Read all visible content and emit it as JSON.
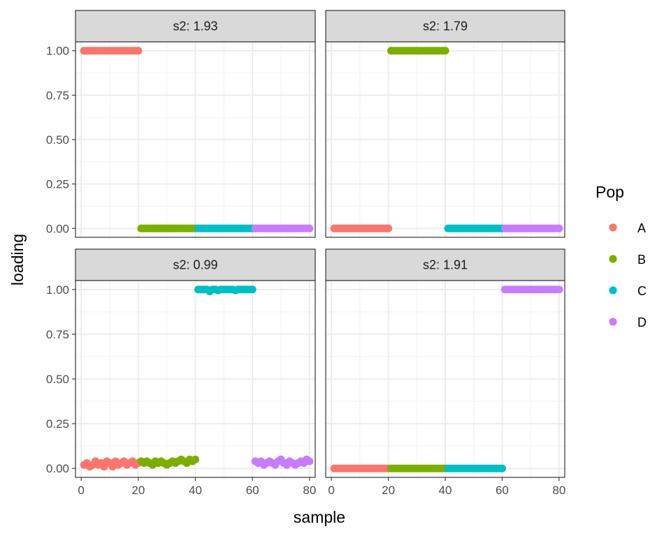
{
  "chart_data": {
    "type": "scatter",
    "xlabel": "sample",
    "ylabel": "loading",
    "xlim": [
      -2,
      82
    ],
    "ylim": [
      -0.05,
      1.05
    ],
    "x_ticks": [
      0,
      20,
      40,
      60,
      80
    ],
    "y_ticks": [
      0.0,
      0.25,
      0.5,
      0.75,
      1.0
    ],
    "x_tick_labels": [
      "0",
      "20",
      "40",
      "60",
      "80"
    ],
    "y_tick_labels": [
      "0.00",
      "0.25",
      "0.50",
      "0.75",
      "1.00"
    ],
    "grid": true,
    "legend": {
      "title": "Pop",
      "placement": "right",
      "entries": [
        {
          "label": "A",
          "color": "#F8766D"
        },
        {
          "label": "B",
          "color": "#7CAE00"
        },
        {
          "label": "C",
          "color": "#00BFC4"
        },
        {
          "label": "D",
          "color": "#C77CFF"
        }
      ]
    },
    "panels": [
      {
        "label": "s2: 1.93",
        "groups": [
          {
            "pop": "A",
            "x_range": [
              1,
              20
            ],
            "y": 1.0
          },
          {
            "pop": "B",
            "x_range": [
              21,
              40
            ],
            "y": 0.0
          },
          {
            "pop": "C",
            "x_range": [
              41,
              60
            ],
            "y": 0.0
          },
          {
            "pop": "D",
            "x_range": [
              61,
              80
            ],
            "y": 0.0
          }
        ]
      },
      {
        "label": "s2: 1.79",
        "groups": [
          {
            "pop": "A",
            "x_range": [
              1,
              20
            ],
            "y": 0.0
          },
          {
            "pop": "B",
            "x_range": [
              21,
              40
            ],
            "y": 1.0
          },
          {
            "pop": "C",
            "x_range": [
              41,
              60
            ],
            "y": 0.0
          },
          {
            "pop": "D",
            "x_range": [
              61,
              80
            ],
            "y": 0.0
          }
        ]
      },
      {
        "label": "s2: 0.99",
        "groups": [
          {
            "pop": "A",
            "x_range": [
              1,
              20
            ],
            "y_values": [
              0.02,
              0.03,
              0.01,
              0.02,
              0.04,
              0.02,
              0.03,
              0.01,
              0.04,
              0.03,
              0.01,
              0.04,
              0.02,
              0.03,
              0.04,
              0.02,
              0.03,
              0.04,
              0.02,
              0.03
            ]
          },
          {
            "pop": "B",
            "x_range": [
              21,
              40
            ],
            "y_values": [
              0.04,
              0.03,
              0.04,
              0.03,
              0.02,
              0.04,
              0.03,
              0.04,
              0.03,
              0.02,
              0.03,
              0.04,
              0.03,
              0.04,
              0.05,
              0.04,
              0.03,
              0.05,
              0.04,
              0.05
            ]
          },
          {
            "pop": "C",
            "x_range": [
              41,
              60
            ],
            "y_values": [
              1.0,
              1.0,
              1.0,
              1.0,
              0.99,
              1.0,
              1.0,
              0.995,
              1.0,
              1.0,
              1.0,
              1.0,
              1.0,
              0.995,
              1.0,
              1.0,
              1.0,
              1.0,
              1.0,
              1.0
            ]
          },
          {
            "pop": "D",
            "x_range": [
              61,
              80
            ],
            "y_values": [
              0.04,
              0.03,
              0.04,
              0.02,
              0.03,
              0.04,
              0.03,
              0.02,
              0.04,
              0.05,
              0.03,
              0.02,
              0.04,
              0.03,
              0.02,
              0.03,
              0.04,
              0.03,
              0.05,
              0.04
            ]
          }
        ]
      },
      {
        "label": "s2: 1.91",
        "groups": [
          {
            "pop": "A",
            "x_range": [
              1,
              20
            ],
            "y": 0.0
          },
          {
            "pop": "B",
            "x_range": [
              21,
              40
            ],
            "y": 0.0
          },
          {
            "pop": "C",
            "x_range": [
              41,
              60
            ],
            "y": 0.0
          },
          {
            "pop": "D",
            "x_range": [
              61,
              80
            ],
            "y": 1.0
          }
        ]
      }
    ]
  }
}
